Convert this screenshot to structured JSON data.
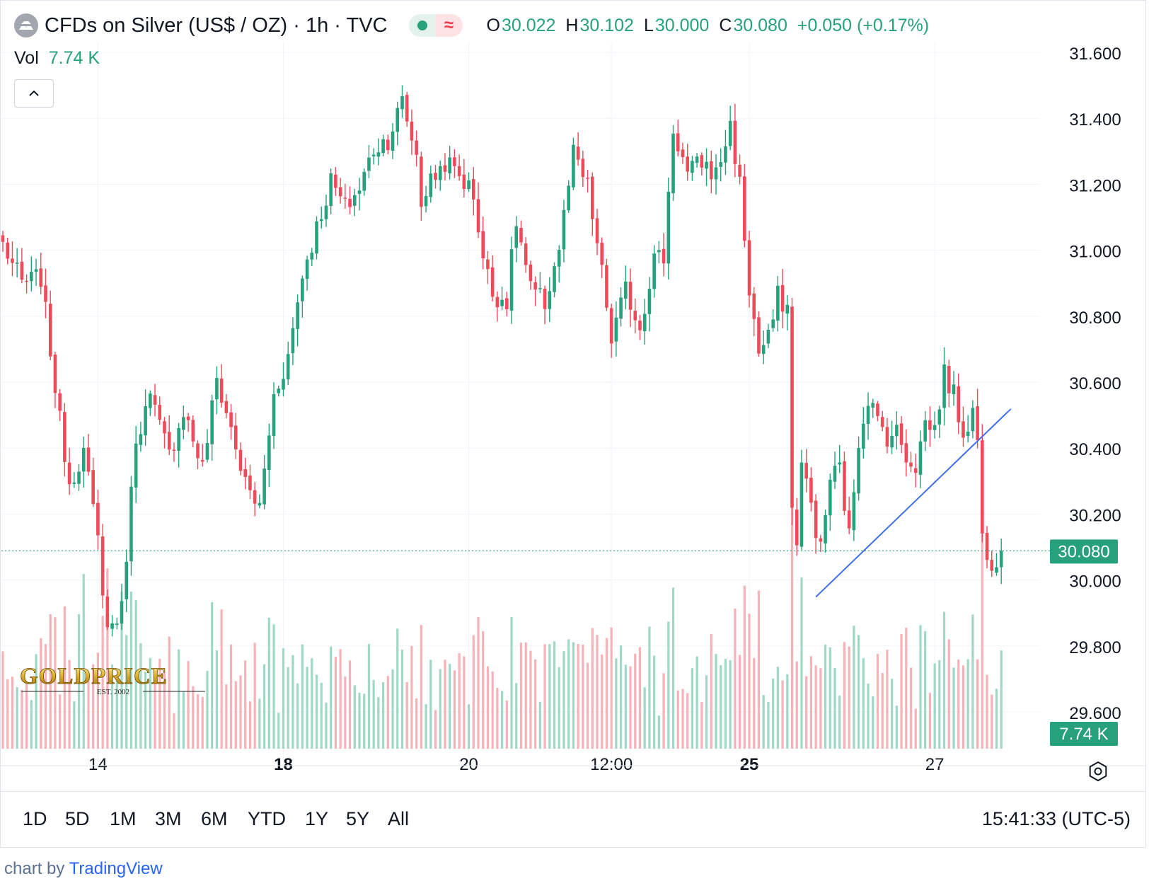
{
  "header": {
    "symbol_title": "CFDs on Silver (US$ / OZ) · 1h · TVC",
    "ohlc": {
      "o_label": "O",
      "o": "30.022",
      "h_label": "H",
      "h": "30.102",
      "l_label": "L",
      "l": "30.000",
      "c_label": "C",
      "c": "30.080",
      "change": "+0.050 (+0.17%)"
    },
    "status_wave_glyph": "≈"
  },
  "volume_legend": {
    "label": "Vol",
    "value": "7.74 K"
  },
  "price_scale": {
    "last_price_label": "30.080",
    "volume_label": "7.74 K"
  },
  "watermark": {
    "brand": "GOLDPRICE",
    "est": "EST. 2002"
  },
  "bottom_bar": {
    "ranges": [
      "1D",
      "5D",
      "1M",
      "3M",
      "6M",
      "YTD",
      "1Y",
      "5Y",
      "All"
    ],
    "clock": "15:41:33 (UTC-5)"
  },
  "attribution": {
    "prefix": "chart by ",
    "brand": "TradingView"
  },
  "colors": {
    "up": "#26a17b",
    "down": "#ef4a5a",
    "trendline": "#3d6fe8",
    "last_price_bg": "#26a17b"
  },
  "icons": {
    "symbol": "silver-bars-icon",
    "collapse": "chevron-up-icon",
    "settings": "gear-icon"
  },
  "chart_data": {
    "type": "candlestick",
    "interval": "1h",
    "ylim": [
      29.55,
      31.62
    ],
    "y_ticks": [
      31.6,
      31.4,
      31.2,
      31.0,
      30.8,
      30.6,
      30.4,
      30.2,
      30.0,
      29.8,
      29.6
    ],
    "y_tick_labels": [
      "31.600",
      "31.400",
      "31.200",
      "31.000",
      "30.800",
      "30.600",
      "30.400",
      "30.200",
      "30.000",
      "29.800",
      "29.600"
    ],
    "x_tick_labels": [
      {
        "label": "14",
        "bar": 20,
        "bold": false
      },
      {
        "label": "18",
        "bar": 59,
        "bold": true
      },
      {
        "label": "20",
        "bar": 98,
        "bold": false
      },
      {
        "label": "12:00",
        "bar": 128,
        "bold": false
      },
      {
        "label": "25",
        "bar": 157,
        "bold": true
      },
      {
        "label": "27",
        "bar": 196,
        "bold": false
      }
    ],
    "last_price": 30.08,
    "trendline": [
      {
        "bar": 171,
        "price": 29.94
      },
      {
        "bar": 212,
        "price": 30.51
      }
    ],
    "anchors": [
      [
        0,
        31.01
      ],
      [
        4,
        30.89
      ],
      [
        8,
        30.91
      ],
      [
        12,
        30.47
      ],
      [
        14,
        30.29
      ],
      [
        17,
        30.38
      ],
      [
        20,
        30.11
      ],
      [
        22,
        29.84
      ],
      [
        25,
        29.9
      ],
      [
        28,
        30.43
      ],
      [
        31,
        30.54
      ],
      [
        35,
        30.37
      ],
      [
        38,
        30.51
      ],
      [
        42,
        30.33
      ],
      [
        45,
        30.6
      ],
      [
        48,
        30.45
      ],
      [
        51,
        30.28
      ],
      [
        54,
        30.21
      ],
      [
        57,
        30.55
      ],
      [
        60,
        30.67
      ],
      [
        63,
        30.92
      ],
      [
        66,
        31.06
      ],
      [
        69,
        31.2
      ],
      [
        72,
        31.12
      ],
      [
        75,
        31.18
      ],
      [
        78,
        31.3
      ],
      [
        81,
        31.33
      ],
      [
        84,
        31.44
      ],
      [
        87,
        31.28
      ],
      [
        88,
        31.14
      ],
      [
        90,
        31.2
      ],
      [
        93,
        31.26
      ],
      [
        96,
        31.22
      ],
      [
        99,
        31.16
      ],
      [
        101,
        30.97
      ],
      [
        103,
        30.86
      ],
      [
        106,
        30.84
      ],
      [
        108,
        31.08
      ],
      [
        111,
        30.87
      ],
      [
        114,
        30.83
      ],
      [
        117,
        31.0
      ],
      [
        120,
        31.28
      ],
      [
        123,
        31.18
      ],
      [
        126,
        30.92
      ],
      [
        128,
        30.72
      ],
      [
        131,
        30.87
      ],
      [
        134,
        30.76
      ],
      [
        137,
        30.97
      ],
      [
        139,
        30.97
      ],
      [
        141,
        31.36
      ],
      [
        144,
        31.22
      ],
      [
        147,
        31.26
      ],
      [
        150,
        31.22
      ],
      [
        153,
        31.37
      ],
      [
        155,
        31.19
      ],
      [
        157,
        30.87
      ],
      [
        159,
        30.68
      ],
      [
        161,
        30.72
      ],
      [
        163,
        30.85
      ],
      [
        165,
        30.82
      ],
      [
        166,
        30.2
      ],
      [
        167,
        30.12
      ],
      [
        168,
        30.34
      ],
      [
        170,
        30.22
      ],
      [
        172,
        30.08
      ],
      [
        174,
        30.3
      ],
      [
        176,
        30.33
      ],
      [
        178,
        30.12
      ],
      [
        180,
        30.42
      ],
      [
        182,
        30.55
      ],
      [
        184,
        30.47
      ],
      [
        186,
        30.43
      ],
      [
        188,
        30.44
      ],
      [
        190,
        30.37
      ],
      [
        192,
        30.34
      ],
      [
        194,
        30.47
      ],
      [
        196,
        30.45
      ],
      [
        198,
        30.62
      ],
      [
        200,
        30.55
      ],
      [
        202,
        30.44
      ],
      [
        204,
        30.5
      ],
      [
        205,
        30.42
      ],
      [
        206,
        30.12
      ],
      [
        208,
        30.05
      ],
      [
        210,
        30.08
      ]
    ],
    "volume_scale_max": 1.0
  }
}
